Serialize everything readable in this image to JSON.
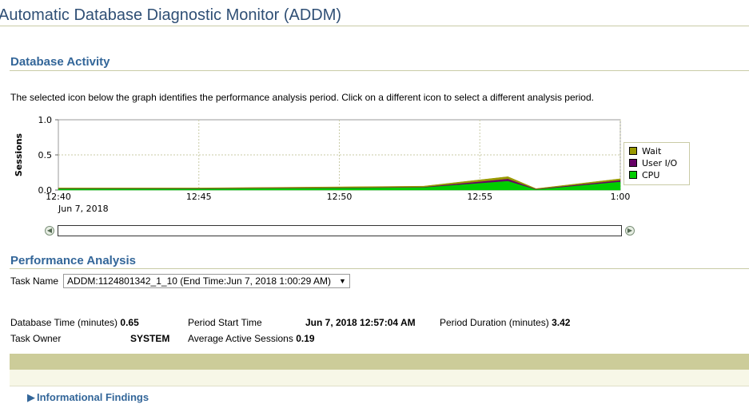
{
  "page": {
    "title": "Automatic Database Diagnostic Monitor (ADDM)"
  },
  "database_activity": {
    "heading": "Database Activity",
    "instructions": "The selected icon below the graph identifies the performance analysis period. Click on a different icon to select a different analysis period."
  },
  "chart_data": {
    "type": "area",
    "ylabel": "Sessions",
    "ylim": [
      0,
      1.0
    ],
    "y_ticks": [
      "1.0",
      "0.5",
      "0.0"
    ],
    "x_ticks": [
      "12:40",
      "12:45",
      "12:50",
      "12:55",
      "1:00"
    ],
    "x_date_label": "Jun 7, 2018",
    "grid": true,
    "legend_position": "right",
    "x": [
      "12:40",
      "12:45",
      "12:50",
      "12:53",
      "12:56",
      "12:57",
      "1:00"
    ],
    "series": [
      {
        "name": "CPU",
        "color": "#00cc00",
        "values": [
          0.02,
          0.02,
          0.03,
          0.04,
          0.13,
          0.01,
          0.12
        ]
      },
      {
        "name": "User I/O",
        "color": "#660066",
        "values": [
          0.005,
          0.005,
          0.005,
          0.005,
          0.03,
          0.005,
          0.02
        ]
      },
      {
        "name": "Wait",
        "color": "#999900",
        "values": [
          0.005,
          0.005,
          0.01,
          0.01,
          0.03,
          0.005,
          0.02
        ]
      }
    ]
  },
  "legend": {
    "items": [
      {
        "label": "Wait",
        "color": "#999900"
      },
      {
        "label": "User I/O",
        "color": "#660066"
      },
      {
        "label": "CPU",
        "color": "#00cc00"
      }
    ]
  },
  "performance_analysis": {
    "heading": "Performance Analysis",
    "task_name_label": "Task Name",
    "task_name_value": "ADDM:1124801342_1_10 (End Time:Jun 7, 2018 1:00:29 AM)"
  },
  "details": {
    "db_time_label": "Database Time (minutes)",
    "db_time_value": "0.65",
    "period_start_label": "Period Start Time",
    "period_start_value": "Jun 7, 2018 12:57:04 AM",
    "period_duration_label": "Period Duration (minutes)",
    "period_duration_value": "3.42",
    "task_owner_label": "Task Owner",
    "task_owner_value": "SYSTEM",
    "avg_sessions_label": "Average Active Sessions",
    "avg_sessions_value": "0.19"
  },
  "findings": {
    "label": "Informational Findings"
  }
}
